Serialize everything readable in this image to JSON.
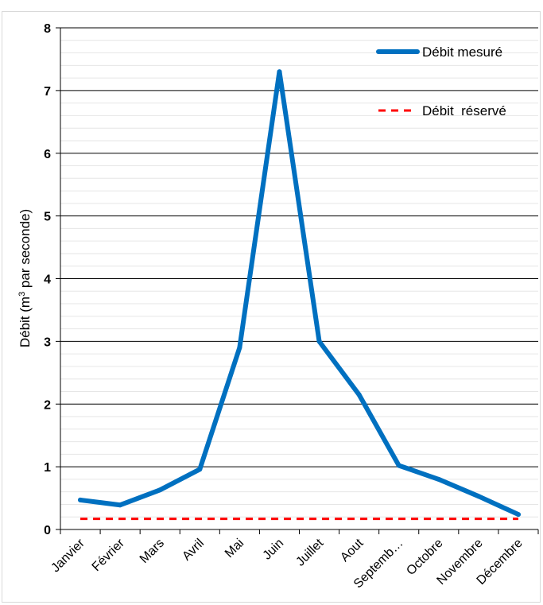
{
  "chart_data": {
    "type": "line",
    "title": "",
    "xlabel": "",
    "ylabel_main": "Débit (m",
    "ylabel_sup": "3",
    "ylabel_rest": " par seconde)",
    "ylim": [
      0,
      8
    ],
    "yticks": [
      "0",
      "1",
      "2",
      "3",
      "4",
      "5",
      "6",
      "7",
      "8"
    ],
    "categories": [
      "Janvier",
      "Février",
      "Mars",
      "Avril",
      "Mai",
      "Juin",
      "Juillet",
      "Aout",
      "Septemb…",
      "Octobre",
      "Novembre",
      "Décembre"
    ],
    "series": [
      {
        "name": "Débit mesuré",
        "color": "#0070C0",
        "style": "solid",
        "values": [
          0.47,
          0.39,
          0.63,
          0.96,
          2.9,
          7.3,
          3.0,
          2.15,
          1.02,
          0.8,
          0.53,
          0.24
        ]
      },
      {
        "name": "Débit  réservé",
        "color": "#FF0000",
        "style": "dashed",
        "values": [
          0.17,
          0.17,
          0.17,
          0.17,
          0.17,
          0.17,
          0.17,
          0.17,
          0.17,
          0.17,
          0.17,
          0.17
        ]
      }
    ],
    "grid": true,
    "minor_grid": true,
    "legend_position": "top-right"
  }
}
